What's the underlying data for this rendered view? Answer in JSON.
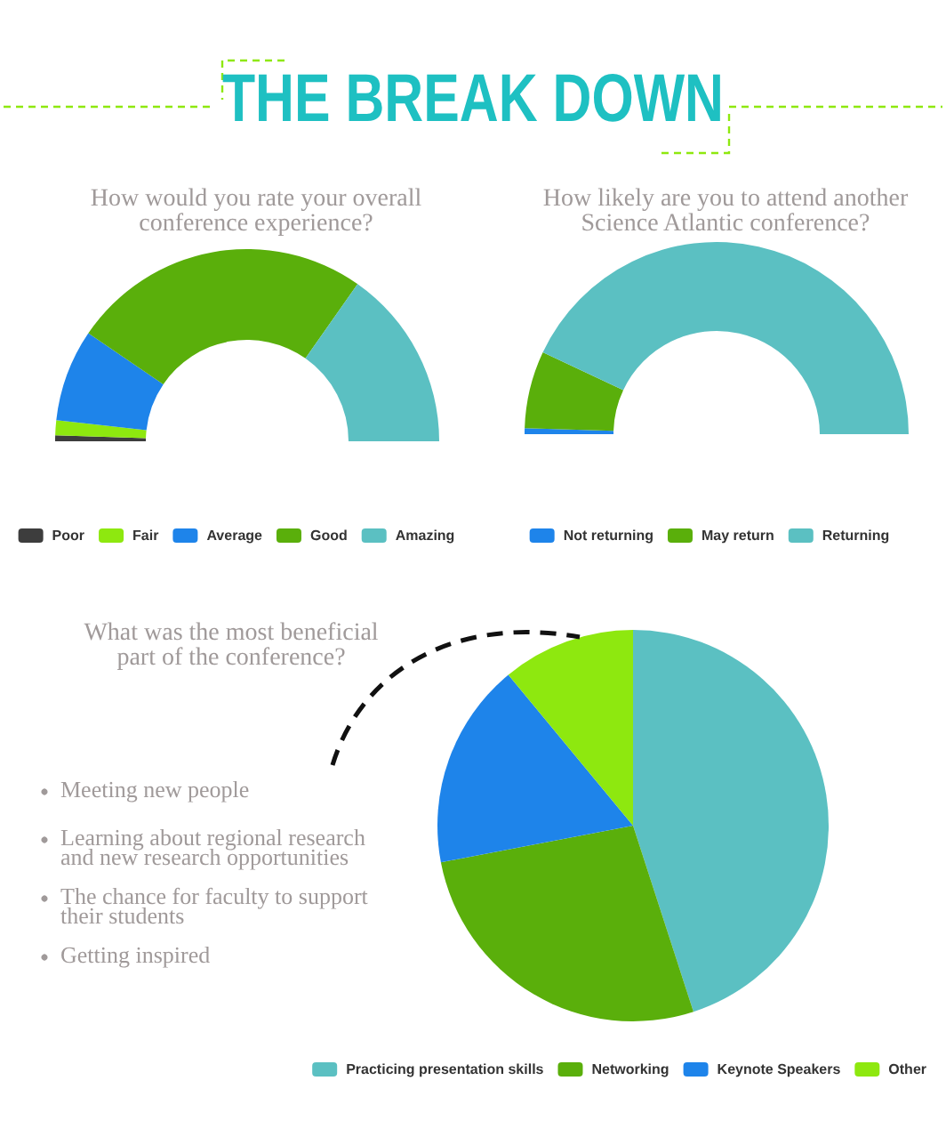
{
  "chart_data": [
    {
      "type": "donut",
      "title": "How would you rate your overall\nconference experience?",
      "annotations": [
        "THE BREAK DOWN"
      ],
      "categories": [
        "Poor",
        "Fair",
        "Average",
        "Good",
        "Amazing"
      ],
      "values": [
        1,
        2.5,
        15.5,
        50.5,
        30.5
      ],
      "colors": [
        "#3d3d3d",
        "#8ee80f",
        "#1e84ea",
        "#5aaf0b",
        "#5bc0c2"
      ],
      "legend": "bottom"
    },
    {
      "type": "donut",
      "title": "How likely are you to attend another\nScience Atlantic conference?",
      "categories": [
        "Not returning",
        "May return",
        "Returning"
      ],
      "values": [
        1,
        13,
        86
      ],
      "colors": [
        "#1e84ea",
        "#5aaf0b",
        "#5bc0c2"
      ],
      "legend": "bottom"
    },
    {
      "type": "pie",
      "title": "What was the most beneficial\npart of the conference?",
      "annotations": [
        "Meeting new people",
        "Learning about regional research\nand new research opportunities",
        "The chance for faculty to support\ntheir students",
        "Getting inspired"
      ],
      "categories": [
        "Practicing presentation skills",
        "Networking",
        "Keynote Speakers",
        "Other"
      ],
      "values": [
        45,
        27,
        17,
        11
      ],
      "colors": [
        "#5bc0c2",
        "#5aaf0b",
        "#1e84ea",
        "#8ee80f"
      ],
      "legend": "bottom right"
    }
  ]
}
